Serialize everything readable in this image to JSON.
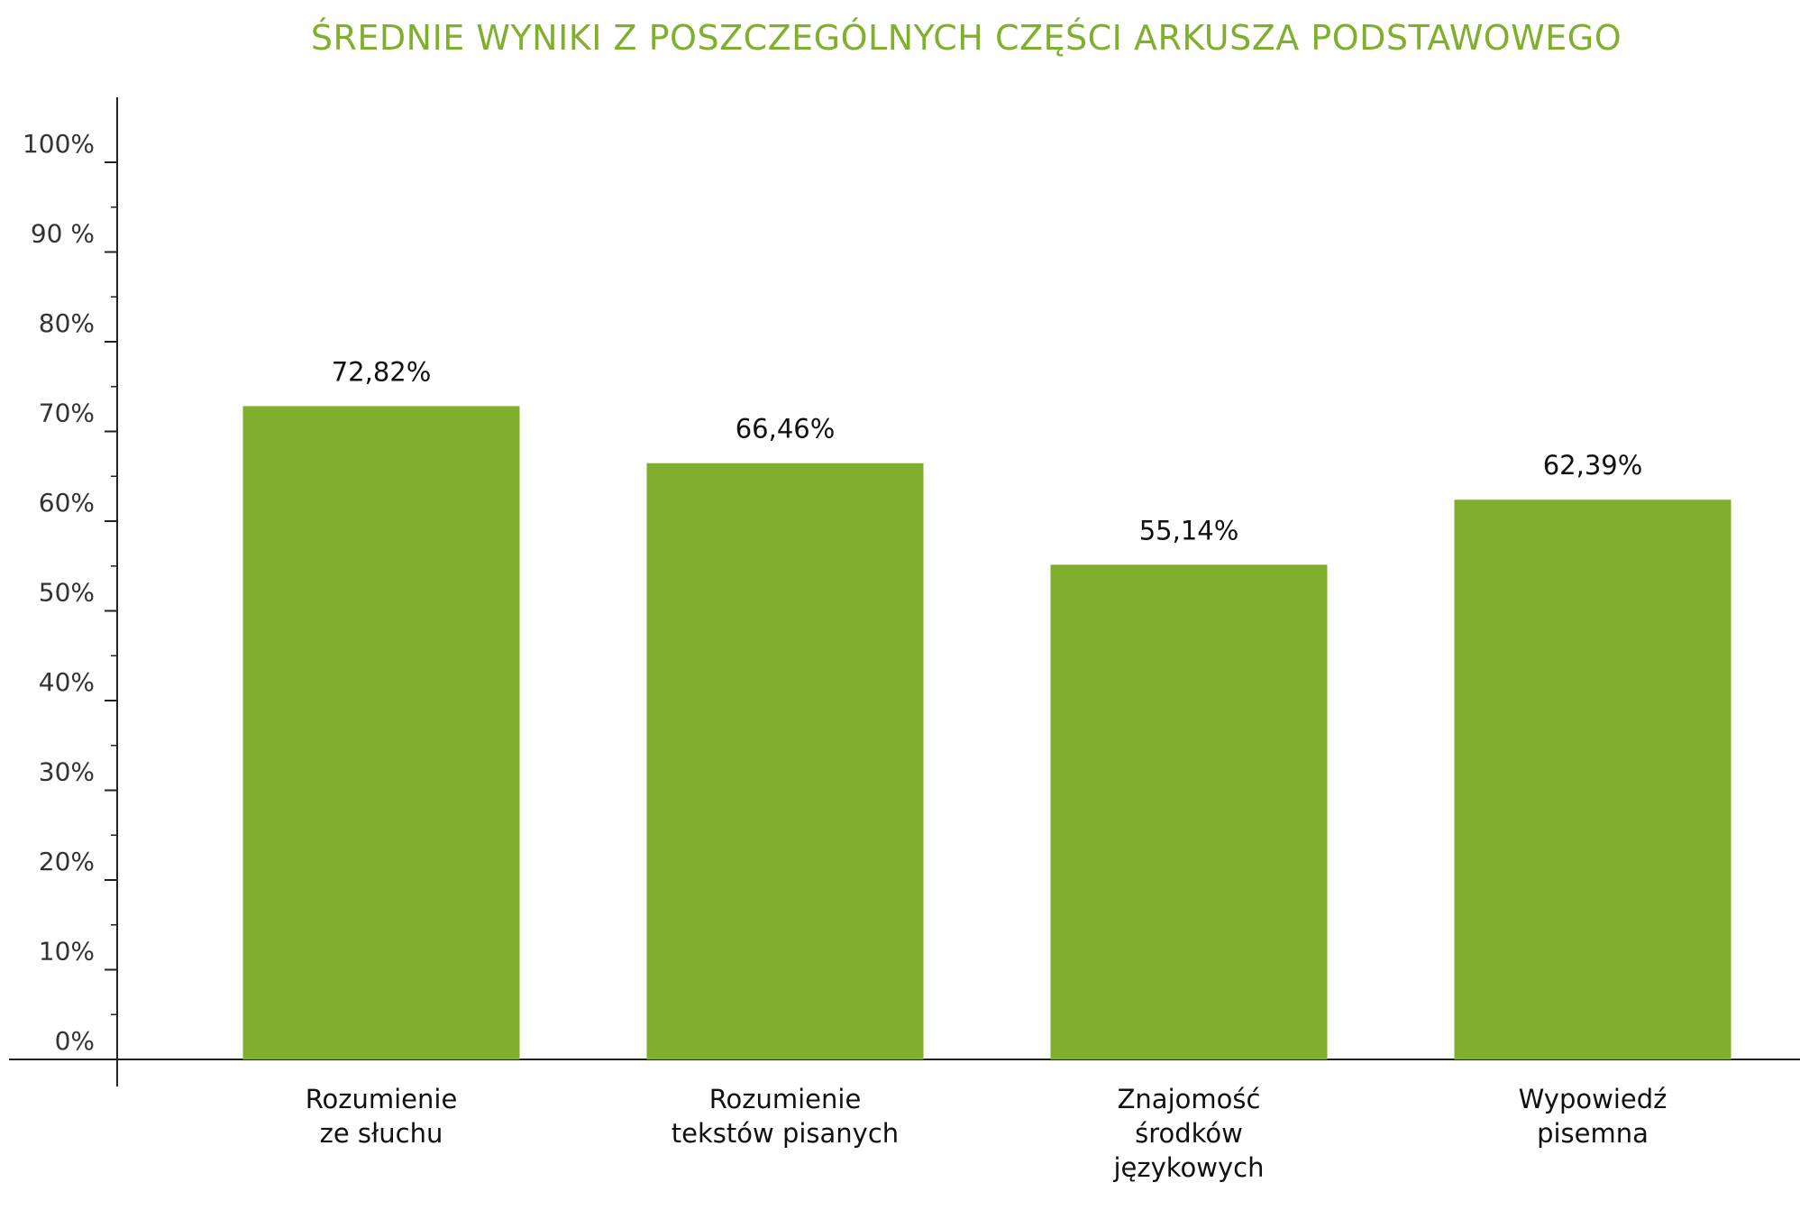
{
  "chart_data": {
    "type": "bar",
    "title": "ŚREDNIE WYNIKI Z POSZCZEGÓLNYCH CZĘŚCI ARKUSZA PODSTAWOWEGO",
    "categories": [
      [
        "Rozumienie",
        "ze słuchu"
      ],
      [
        "Rozumienie",
        "tekstów pisanych"
      ],
      [
        "Znajomość",
        "środków",
        "językowych"
      ],
      [
        "Wypowiedź",
        "pisemna"
      ]
    ],
    "values": [
      72.82,
      66.46,
      55.14,
      62.39
    ],
    "value_labels": [
      "72,82%",
      "66,46%",
      "55,14%",
      "62,39%"
    ],
    "y_ticks": [
      0,
      10,
      20,
      30,
      40,
      50,
      60,
      70,
      80,
      90,
      100
    ],
    "y_tick_labels": [
      "0%",
      "10%",
      "20%",
      "30%",
      "40%",
      "50%",
      "60%",
      "70%",
      "80%",
      "90 %",
      "100%"
    ],
    "ylim": [
      0,
      100
    ],
    "xlabel": "",
    "ylabel": "",
    "grid": false,
    "legend": "none",
    "colors": {
      "bar": "#80AF2D",
      "title": "#80AF2D",
      "axis": "#222222"
    }
  }
}
